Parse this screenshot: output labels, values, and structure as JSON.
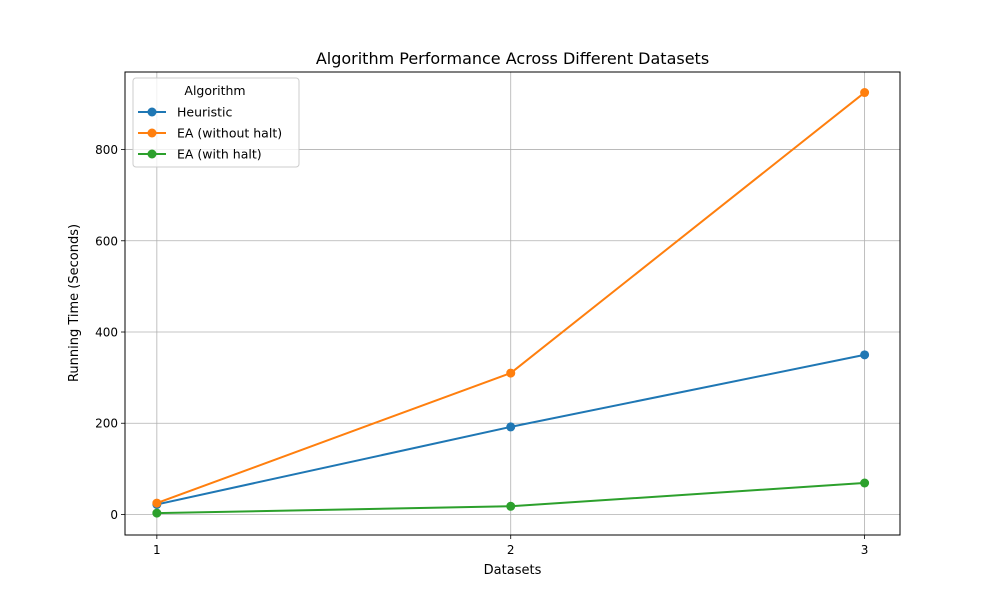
{
  "chart_data": {
    "type": "line",
    "title": "Algorithm Performance Across Different Datasets",
    "xlabel": "Datasets",
    "ylabel": "Running Time (Seconds)",
    "x": [
      1,
      2,
      3
    ],
    "x_tick_labels": [
      "1",
      "2",
      "3"
    ],
    "y_ticks": [
      0,
      200,
      400,
      600,
      800
    ],
    "y_tick_labels": [
      "0",
      "200",
      "400",
      "600",
      "800"
    ],
    "xlim": [
      0.91,
      3.1
    ],
    "ylim": [
      -45,
      970
    ],
    "grid": true,
    "legend": {
      "title": "Algorithm",
      "placement": "top-left"
    },
    "series": [
      {
        "name": "Heuristic",
        "color": "#1f77b4",
        "values": [
          22,
          192,
          350
        ]
      },
      {
        "name": "EA (without halt)",
        "color": "#ff7f0e",
        "values": [
          25,
          310,
          925
        ]
      },
      {
        "name": "EA (with halt)",
        "color": "#2ca02c",
        "values": [
          3,
          18,
          69
        ]
      }
    ]
  }
}
